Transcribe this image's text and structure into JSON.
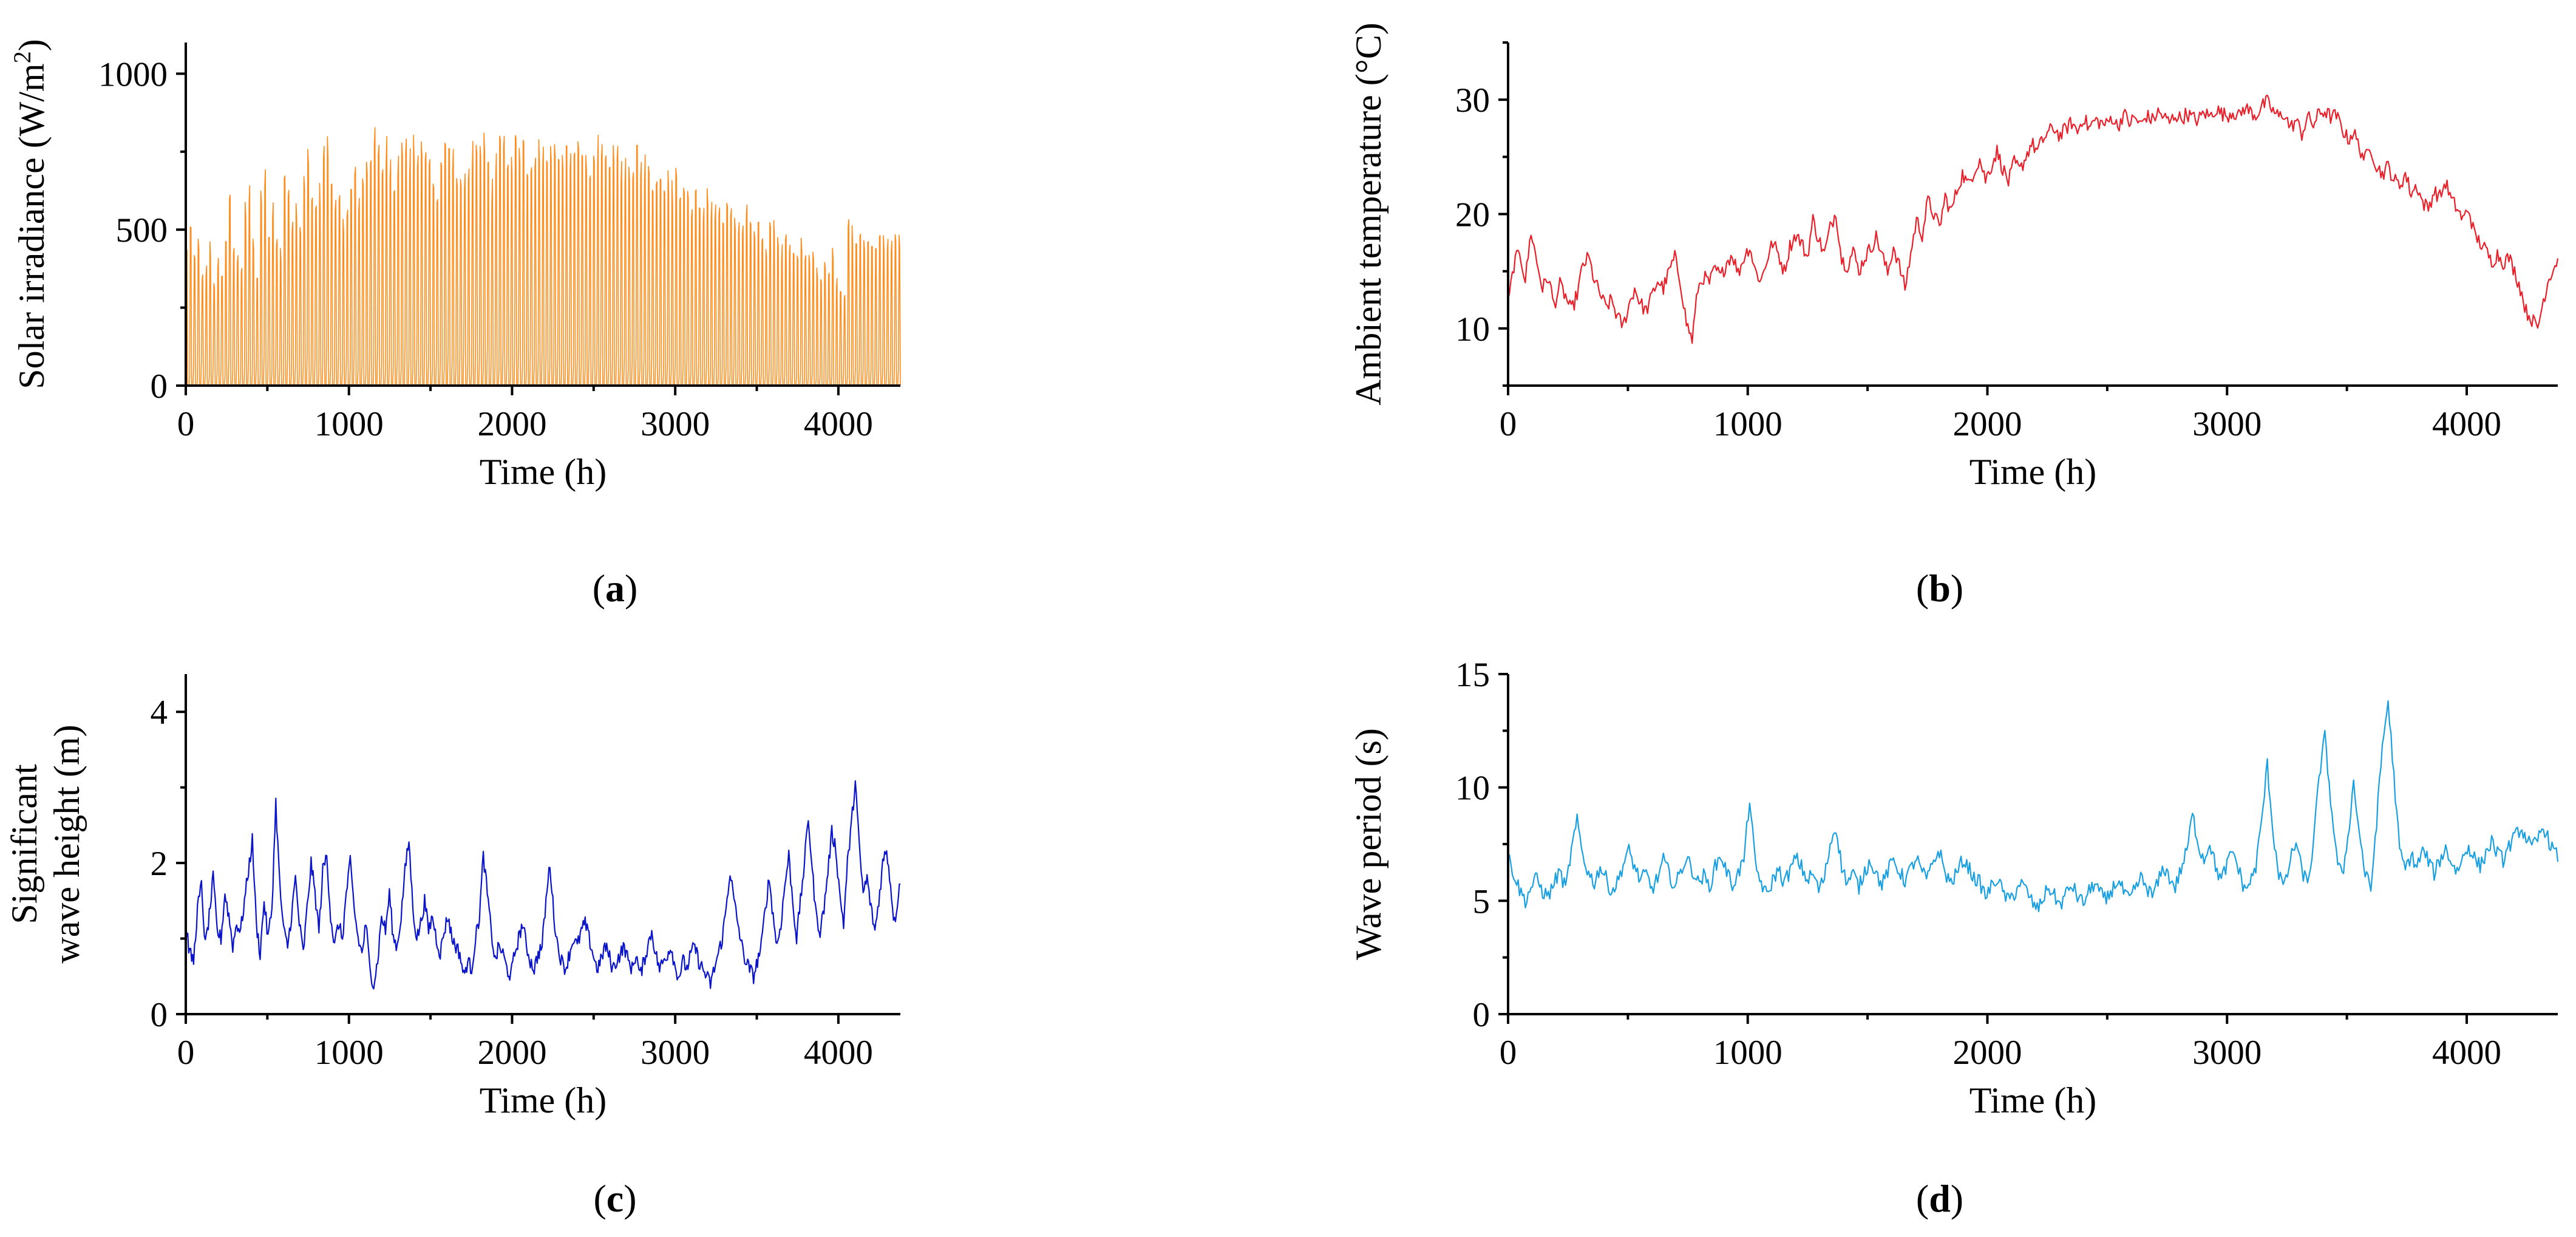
{
  "chart_data": [
    {
      "id": "a",
      "type": "line",
      "caption_letter": "a",
      "xlabel": "Time (h)",
      "ylabel_parts": [
        "Solar irradiance (W/m",
        "2",
        ")"
      ],
      "xlim": [
        0,
        4380
      ],
      "ylim": [
        0,
        1100
      ],
      "xticks": [
        0,
        1000,
        2000,
        3000,
        4000
      ],
      "yticks": [
        0,
        500,
        1000
      ],
      "color": "#ff8c1a",
      "series": [
        {
          "name": "Solar irradiance",
          "step_hours": 24,
          "daily_peak": [
            520,
            610,
            480,
            560,
            420,
            450,
            540,
            380,
            470,
            430,
            600,
            740,
            520,
            480,
            460,
            700,
            760,
            560,
            420,
            780,
            820,
            600,
            690,
            540,
            520,
            830,
            760,
            640,
            700,
            610,
            800,
            860,
            720,
            680,
            750,
            900,
            920,
            800,
            710,
            690,
            620,
            680,
            750,
            800,
            730,
            790,
            860,
            900,
            950,
            890,
            850,
            930,
            870,
            810,
            860,
            930,
            900,
            880,
            920,
            840,
            930,
            900,
            860,
            820,
            760,
            880,
            940,
            930,
            870,
            800,
            830,
            770,
            860,
            910,
            880,
            900,
            940,
            850,
            760,
            890,
            940,
            920,
            900,
            860,
            930,
            890,
            920,
            880,
            850,
            920,
            910,
            890,
            860,
            900,
            930,
            870,
            920,
            900,
            880,
            920,
            930,
            900,
            880,
            850,
            900,
            920,
            880,
            860,
            840,
            900,
            880,
            860,
            830,
            870,
            820,
            900,
            850,
            860,
            820,
            800,
            780,
            840,
            810,
            800,
            760,
            830,
            780,
            740,
            760,
            720,
            780,
            740,
            700,
            740,
            680,
            660,
            720,
            640,
            700,
            660,
            620,
            640,
            600,
            680,
            640,
            580,
            600,
            560,
            540,
            660,
            620,
            560,
            520,
            600,
            540,
            500,
            480,
            560,
            520,
            480,
            500,
            460,
            440,
            500,
            440,
            540,
            420,
            380,
            360,
            620,
            600,
            560
          ],
          "daily_base": [
            50,
            30,
            60,
            20,
            80,
            40,
            30,
            70,
            40,
            50,
            30,
            90,
            40,
            60,
            30,
            50,
            80,
            40,
            60,
            30,
            100,
            50,
            40,
            80,
            60,
            30,
            90,
            50,
            70,
            40,
            60,
            100,
            50,
            80,
            40,
            70,
            120,
            60,
            40,
            90,
            50,
            80,
            60,
            110,
            50,
            70,
            40,
            90,
            60,
            130,
            70,
            50,
            80,
            60,
            100,
            50,
            140,
            70,
            60,
            90,
            50,
            120,
            80,
            60,
            100,
            70,
            50,
            110,
            80,
            60,
            90,
            130,
            70,
            50,
            100,
            80,
            60,
            120,
            90,
            70,
            50,
            110,
            80,
            60,
            90,
            140,
            70,
            50,
            100,
            60,
            80,
            120,
            90,
            60,
            70,
            100,
            50,
            80,
            110,
            60,
            90,
            70,
            50,
            120,
            80,
            60,
            100,
            70,
            50,
            90,
            110,
            60,
            80,
            50,
            70,
            100,
            60,
            80,
            50,
            90,
            70,
            60,
            40,
            80,
            50,
            70,
            30,
            60,
            80,
            40,
            50,
            70,
            30,
            60,
            40,
            80,
            30,
            50,
            60,
            40,
            70,
            30,
            50,
            40,
            60,
            30,
            50,
            40,
            30,
            60,
            40,
            50,
            30,
            40,
            20,
            50,
            30,
            40,
            20,
            30,
            40,
            20,
            30,
            10,
            20,
            30,
            10,
            20,
            40,
            30,
            20,
            50
          ]
        }
      ]
    },
    {
      "id": "b",
      "type": "line",
      "caption_letter": "b",
      "xlabel": "Time (h)",
      "ylabel_parts": [
        "Ambient temperature (°C)"
      ],
      "xlim": [
        0,
        4380
      ],
      "ylim": [
        5,
        35
      ],
      "xticks": [
        0,
        1000,
        2000,
        3000,
        4000
      ],
      "yticks": [
        10,
        20,
        30
      ],
      "color": "#e8202a",
      "series": [
        {
          "name": "Ambient temperature",
          "step_hours": 24,
          "values": [
            12.0,
            15.5,
            16.8,
            14.2,
            18.5,
            15.8,
            13.5,
            14.5,
            12.0,
            13.8,
            12.8,
            11.5,
            13.0,
            15.5,
            16.2,
            14.2,
            13.0,
            11.8,
            12.5,
            11.0,
            10.2,
            12.0,
            13.5,
            12.2,
            11.5,
            12.8,
            14.2,
            13.5,
            15.0,
            16.2,
            14.0,
            10.5,
            9.0,
            13.5,
            14.5,
            14.0,
            15.2,
            14.5,
            15.8,
            16.5,
            14.8,
            16.2,
            17.2,
            15.0,
            14.2,
            16.0,
            17.5,
            16.5,
            15.0,
            17.2,
            18.2,
            17.5,
            16.2,
            19.5,
            17.8,
            16.5,
            18.8,
            20.2,
            16.0,
            15.5,
            16.8,
            15.0,
            16.2,
            17.0,
            18.0,
            16.5,
            14.8,
            17.2,
            15.5,
            13.5,
            16.5,
            19.5,
            18.2,
            21.2,
            20.0,
            18.8,
            21.5,
            20.2,
            22.0,
            23.5,
            22.5,
            23.8,
            24.8,
            23.0,
            24.2,
            25.5,
            24.0,
            22.8,
            24.5,
            23.8,
            25.0,
            26.2,
            25.5,
            26.5,
            27.2,
            27.5,
            26.8,
            27.5,
            28.0,
            27.2,
            28.5,
            27.5,
            28.2,
            28.0,
            27.8,
            28.5,
            27.6,
            28.8,
            28.0,
            28.4,
            27.8,
            28.6,
            28.2,
            28.9,
            28.5,
            28.0,
            28.7,
            28.3,
            28.8,
            28.4,
            28.2,
            28.9,
            28.5,
            29.2,
            28.8,
            28.6,
            29.0,
            28.5,
            29.3,
            29.0,
            28.6,
            29.4,
            29.8,
            29.0,
            28.5,
            28.8,
            27.5,
            28.2,
            27.0,
            28.5,
            27.8,
            28.8,
            29.0,
            28.5,
            28.6,
            27.5,
            26.5,
            27.2,
            25.8,
            24.8,
            25.8,
            24.2,
            23.5,
            24.2,
            23.0,
            22.5,
            23.5,
            21.8,
            22.5,
            21.0,
            20.5,
            22.0,
            21.5,
            22.8,
            21.2,
            20.5,
            19.5,
            20.5,
            18.2,
            17.5,
            16.8,
            15.8,
            16.5,
            15.8,
            16.2,
            15.0,
            13.5,
            11.5,
            10.8,
            10.0,
            12.5,
            14.5,
            15.5,
            16.8,
            14.0,
            9.5
          ]
        }
      ]
    },
    {
      "id": "c",
      "type": "line",
      "caption_letter": "c",
      "xlabel": "Time (h)",
      "ylabel_parts": [
        "Significant",
        "wave height (m)"
      ],
      "xlim": [
        0,
        4380
      ],
      "ylim": [
        0,
        4.5
      ],
      "xticks": [
        0,
        1000,
        2000,
        3000,
        4000
      ],
      "yticks": [
        0,
        2,
        4
      ],
      "color": "#0a14c8",
      "series": [
        {
          "name": "Significant wave height",
          "step_hours": 24,
          "values": [
            1.2,
            0.8,
            0.7,
            1.4,
            1.7,
            0.9,
            1.3,
            1.8,
            1.1,
            1.0,
            1.6,
            1.3,
            0.9,
            1.2,
            1.1,
            1.5,
            1.9,
            2.3,
            1.2,
            0.8,
            1.5,
            1.0,
            1.4,
            2.8,
            1.7,
            1.1,
            0.9,
            1.3,
            1.8,
            1.2,
            0.8,
            1.4,
            2.0,
            1.6,
            1.1,
            1.9,
            2.1,
            1.3,
            0.9,
            1.2,
            1.0,
            1.6,
            2.0,
            1.4,
            1.0,
            0.8,
            1.2,
            0.6,
            0.4,
            0.7,
            1.3,
            1.1,
            1.6,
            1.0,
            0.9,
            1.3,
            1.9,
            2.3,
            1.4,
            1.0,
            1.2,
            1.5,
            1.1,
            1.3,
            1.0,
            0.8,
            1.1,
            1.3,
            1.0,
            0.9,
            0.8,
            0.5,
            0.7,
            0.6,
            1.0,
            1.3,
            2.1,
            1.6,
            1.1,
            0.7,
            0.9,
            0.8,
            0.6,
            0.5,
            0.8,
            1.0,
            1.2,
            0.9,
            0.7,
            0.6,
            0.8,
            0.9,
            1.5,
            2.0,
            1.3,
            0.9,
            0.7,
            0.6,
            0.8,
            1.0,
            0.9,
            1.1,
            1.2,
            1.0,
            0.8,
            0.6,
            0.7,
            0.9,
            0.8,
            0.6,
            0.7,
            0.8,
            0.9,
            0.7,
            0.6,
            0.8,
            0.5,
            0.7,
            0.9,
            1.1,
            0.8,
            0.6,
            0.7,
            0.8,
            0.9,
            0.6,
            0.5,
            0.7,
            0.6,
            0.8,
            0.9,
            0.7,
            0.6,
            0.5,
            0.4,
            0.6,
            0.8,
            1.0,
            1.4,
            1.9,
            1.5,
            1.2,
            0.9,
            0.7,
            0.6,
            0.5,
            0.7,
            0.9,
            1.4,
            1.8,
            1.3,
            0.9,
            1.2,
            1.7,
            2.1,
            1.5,
            1.0,
            1.5,
            2.0,
            2.6,
            1.9,
            1.3,
            1.1,
            1.4,
            1.9,
            2.4,
            2.2,
            1.6,
            1.2,
            2.0,
            2.5,
            3.1,
            2.2,
            1.6,
            1.8,
            1.4,
            1.1,
            1.5,
            2.0,
            2.2,
            1.7,
            1.2,
            1.6,
            2.0,
            2.4,
            1.8,
            1.3,
            1.5,
            1.8,
            2.0,
            2.2,
            2.5,
            2.8,
            2.2,
            1.7,
            1.4,
            1.1,
            1.6,
            2.1,
            2.5,
            3.0,
            2.4,
            1.9,
            1.6,
            2.0,
            2.4,
            2.7,
            2.6,
            2.3,
            2.0,
            2.2,
            2.5,
            2.1,
            1.8,
            1.5,
            1.3,
            1.8,
            2.3,
            1.6,
            1.2
          ]
        }
      ]
    },
    {
      "id": "d",
      "type": "line",
      "caption_letter": "d",
      "xlabel": "Time (h)",
      "ylabel_parts": [
        "Wave period (s)"
      ],
      "xlim": [
        0,
        4380
      ],
      "ylim": [
        0,
        15
      ],
      "xticks": [
        0,
        1000,
        2000,
        3000,
        4000
      ],
      "yticks": [
        0,
        5,
        10,
        15
      ],
      "color": "#1aa0e0",
      "series": [
        {
          "name": "Wave period",
          "step_hours": 24,
          "values": [
            7.0,
            6.2,
            5.5,
            5.0,
            5.6,
            6.0,
            5.4,
            5.2,
            5.8,
            6.3,
            5.5,
            7.2,
            8.5,
            7.0,
            6.2,
            5.8,
            6.5,
            6.0,
            5.4,
            5.8,
            6.6,
            7.2,
            6.5,
            5.9,
            6.2,
            5.5,
            6.0,
            6.8,
            6.2,
            5.6,
            6.3,
            6.9,
            6.4,
            5.8,
            6.1,
            5.6,
            6.5,
            7.0,
            6.3,
            5.7,
            6.2,
            6.8,
            9.5,
            6.5,
            5.8,
            5.2,
            5.9,
            6.4,
            5.8,
            6.3,
            6.9,
            6.5,
            5.9,
            6.2,
            5.5,
            6.0,
            7.5,
            8.3,
            6.5,
            5.8,
            6.2,
            5.6,
            6.3,
            6.8,
            6.2,
            5.7,
            6.3,
            6.8,
            6.3,
            5.9,
            6.4,
            6.9,
            6.2,
            6.0,
            6.8,
            7.2,
            6.2,
            5.8,
            6.2,
            6.8,
            6.5,
            6.0,
            5.8,
            5.2,
            5.6,
            6.0,
            5.4,
            5.0,
            5.3,
            5.8,
            5.5,
            5.0,
            4.6,
            5.1,
            5.6,
            5.2,
            4.8,
            5.3,
            5.7,
            5.2,
            4.9,
            5.4,
            5.8,
            5.3,
            5.0,
            5.5,
            5.9,
            5.4,
            5.0,
            5.5,
            6.0,
            5.6,
            5.2,
            5.8,
            6.5,
            6.0,
            5.6,
            6.4,
            7.2,
            8.8,
            7.5,
            6.8,
            7.6,
            6.5,
            5.9,
            6.6,
            7.2,
            6.4,
            5.5,
            5.8,
            6.5,
            8.5,
            11.0,
            8.0,
            6.2,
            5.6,
            6.8,
            7.6,
            6.3,
            5.8,
            7.4,
            10.5,
            12.2,
            9.5,
            7.0,
            6.0,
            7.8,
            10.2,
            8.0,
            6.2,
            5.5,
            8.5,
            11.8,
            13.8,
            10.5,
            7.2,
            6.4,
            7.0,
            6.5,
            7.2,
            6.8,
            6.2,
            6.8,
            7.3,
            6.7,
            6.3,
            6.9,
            7.4,
            6.9,
            6.5,
            7.1,
            7.6,
            7.1,
            6.8,
            7.4,
            7.8,
            8.2,
            7.8,
            7.3,
            7.7,
            8.3,
            7.6,
            7.1,
            6.8,
            7.2,
            6.6,
            6.1,
            6.8,
            7.3,
            6.4
          ]
        }
      ]
    }
  ]
}
